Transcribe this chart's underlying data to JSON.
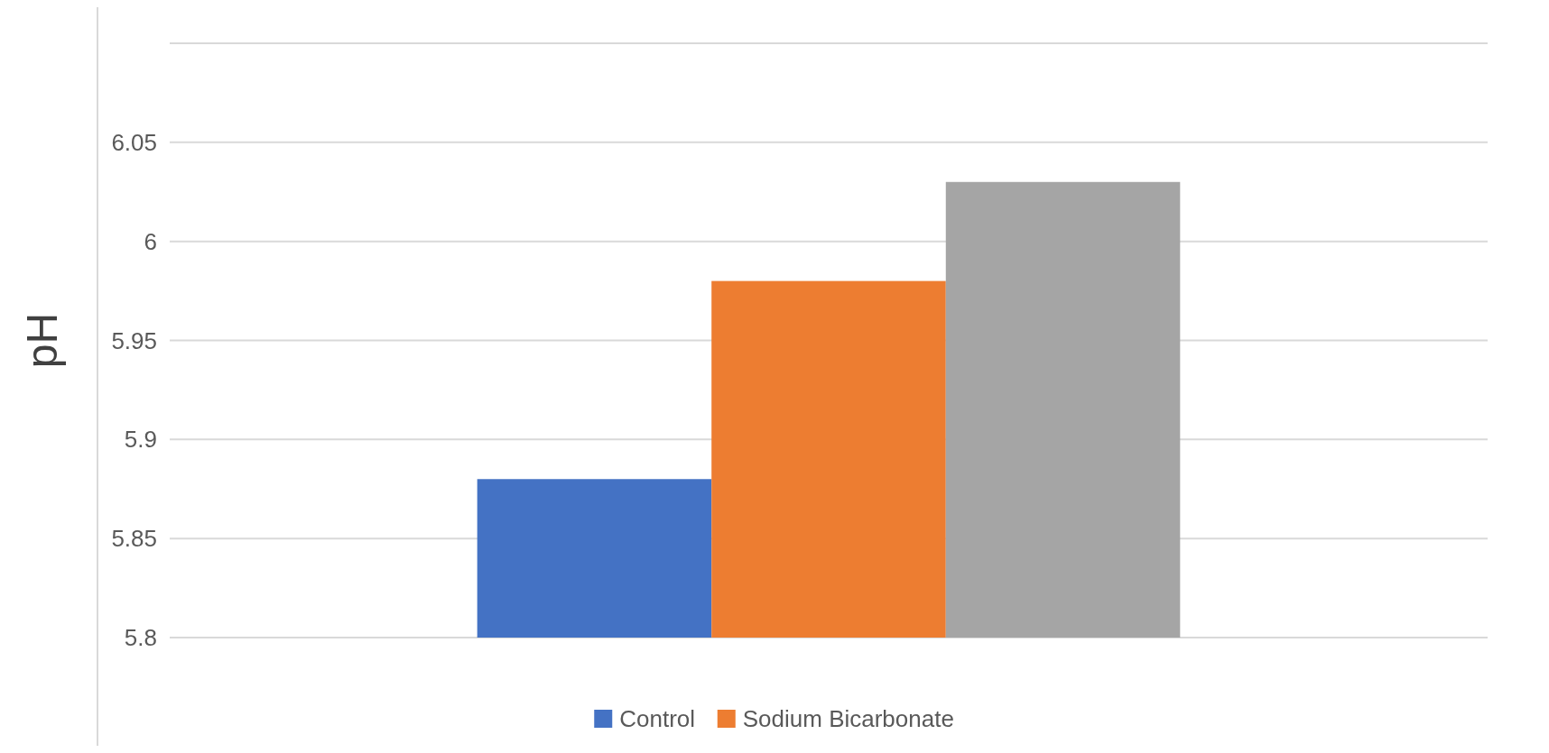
{
  "chart_data": {
    "type": "bar",
    "ylabel": "pH",
    "categories": [
      null
    ],
    "series": [
      {
        "name": "Control",
        "color": "#4472c4",
        "values": [
          5.88
        ]
      },
      {
        "name": "Sodium Bicarbonate",
        "color": "#ed7d31",
        "values": [
          5.98
        ]
      },
      {
        "color": "#a5a5a5",
        "values": [
          6.03
        ]
      }
    ],
    "ylim": [
      5.8,
      6.1
    ],
    "yticks": [
      5.8,
      5.85,
      5.9,
      5.95,
      6,
      6.05,
      {
        "value": 6.1,
        "label": null
      }
    ],
    "grid": "y",
    "legend": "bottom"
  }
}
